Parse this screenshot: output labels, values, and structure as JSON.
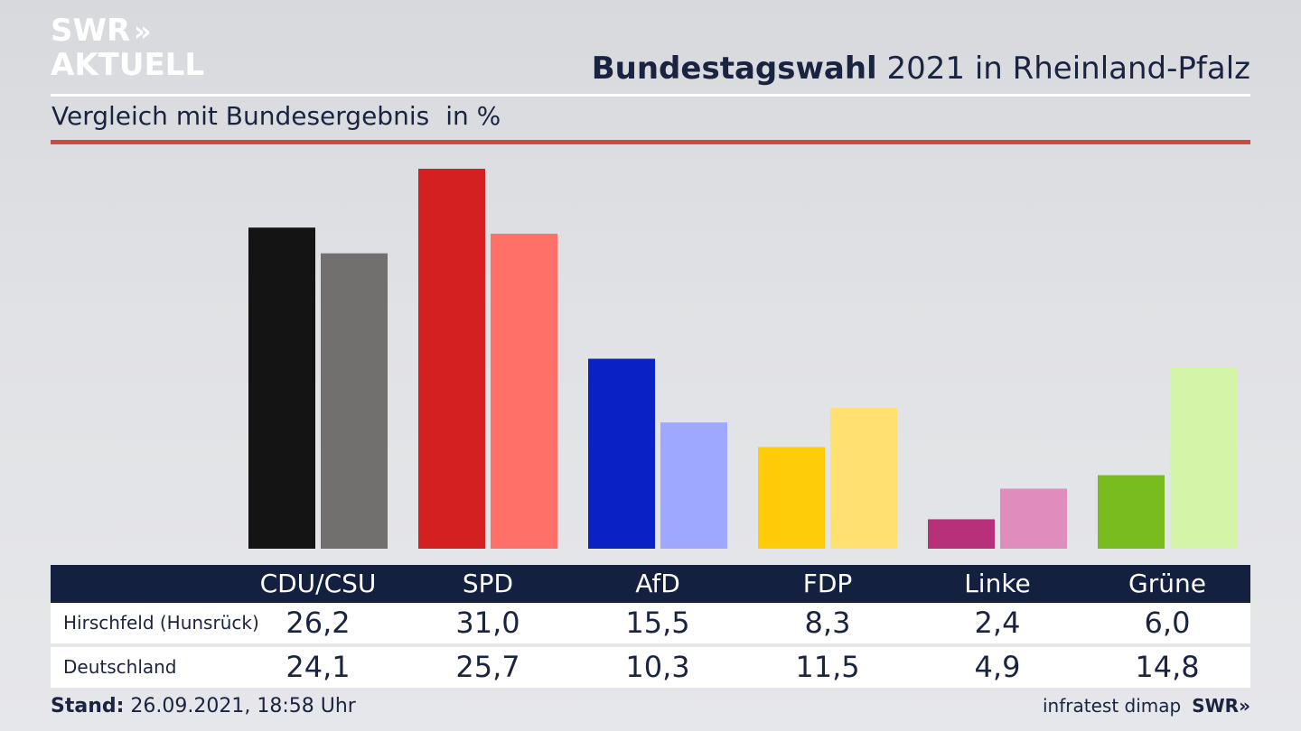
{
  "brand": {
    "logo_line1": "SWR",
    "logo_line2": "AKTUELL",
    "logo_chevrons": "»",
    "footer_logo": "SWR»"
  },
  "header": {
    "title_bold": "Bundestagswahl",
    "title_rest": " 2021 in Rheinland-Pfalz"
  },
  "subtitle": {
    "text": "Vergleich mit Bundesergebnis",
    "unit": "in %"
  },
  "footer": {
    "stand_label": "Stand:",
    "stand_value": " 26.09.2021, 18:58 Uhr",
    "source": "infratest dimap"
  },
  "colors": {
    "accent_red_rule": "#d04a3a",
    "table_header_bg": "#14203f"
  },
  "chart_data": {
    "type": "bar",
    "categories": [
      "CDU/CSU",
      "SPD",
      "AfD",
      "FDP",
      "Linke",
      "Grüne"
    ],
    "series": [
      {
        "name": "Hirschfeld (Hunsrück)",
        "values": [
          26.2,
          31.0,
          15.5,
          8.3,
          2.4,
          6.0
        ],
        "colors": [
          "#141414",
          "#d42020",
          "#0a22c4",
          "#ffcc0a",
          "#b8307a",
          "#78bc20"
        ]
      },
      {
        "name": "Deutschland",
        "values": [
          24.1,
          25.7,
          10.3,
          11.5,
          4.9,
          14.8
        ],
        "colors": [
          "#72706e",
          "#ff7168",
          "#9ea8ff",
          "#ffe070",
          "#e08cbc",
          "#d4f5a8"
        ]
      }
    ],
    "display_values": [
      [
        "26,2",
        "31,0",
        "15,5",
        "8,3",
        "2,4",
        "6,0"
      ],
      [
        "24,1",
        "25,7",
        "10,3",
        "11,5",
        "4,9",
        "14,8"
      ]
    ],
    "ylim": [
      0,
      31
    ]
  }
}
